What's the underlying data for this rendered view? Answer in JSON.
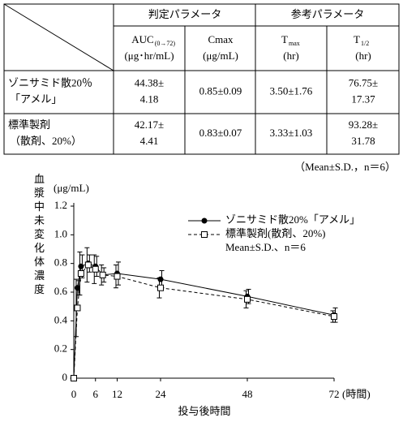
{
  "table": {
    "groups": [
      "判定パラメータ",
      "参考パラメータ"
    ],
    "columns": [
      {
        "name": "AUC",
        "sub": "(0→72)",
        "unit": "(μg･hr/mL)"
      },
      {
        "name": "Cmax",
        "sub": null,
        "unit": "(μg/mL)"
      },
      {
        "name": "T",
        "sub": "max",
        "unit": "(hr)"
      },
      {
        "name": "T",
        "sub": "1/2",
        "unit": "(hr)"
      }
    ],
    "rows": [
      {
        "label": [
          "ゾニサミド散20％",
          "「アメル」"
        ],
        "cells": [
          [
            "44.38±",
            "4.18"
          ],
          [
            "0.85±0.09"
          ],
          [
            "3.50±1.76"
          ],
          [
            "76.75±",
            "17.37"
          ]
        ]
      },
      {
        "label": [
          "標準製剤",
          "（散剤、20%）"
        ],
        "cells": [
          [
            "42.17±",
            "4.41"
          ],
          [
            "0.83±0.07"
          ],
          [
            "3.33±1.03"
          ],
          [
            "93.28±",
            "31.78"
          ]
        ]
      }
    ],
    "note": "（Mean±S.D.，n＝6）"
  },
  "chart_data": {
    "type": "line",
    "y_label": "(μg/mL)",
    "y_title": "血漿中未変化体濃度",
    "x_label": "投与後時間",
    "x_unit": "(時間)",
    "x": [
      0,
      1,
      2,
      4,
      6,
      8,
      12,
      24,
      48,
      72
    ],
    "series": [
      {
        "name": "ゾニサミド散20%「アメル」",
        "color": "#000",
        "values": [
          0,
          0.63,
          0.78,
          0.8,
          0.78,
          0.72,
          0.73,
          0.69,
          0.57,
          0.44
        ],
        "errors": [
          0,
          0.05,
          0.08,
          0.06,
          0.07,
          0.05,
          0.08,
          0.06,
          0.05,
          0.05
        ]
      },
      {
        "name": "標準製剤(散剤、20%)",
        "color": "#000",
        "values": [
          0,
          0.49,
          0.73,
          0.79,
          0.76,
          0.72,
          0.71,
          0.63,
          0.55,
          0.43
        ],
        "errors": [
          0,
          0.2,
          0.15,
          0.12,
          0.1,
          0.07,
          0.08,
          0.07,
          0.06,
          0.04
        ]
      }
    ],
    "note": "Mean±S.D.、n＝6",
    "xlim": [
      0,
      72
    ],
    "ylim": [
      0,
      1.2
    ],
    "xticks": [
      0,
      6,
      12,
      24,
      48,
      72
    ],
    "yticks": [
      0,
      0.2,
      0.4,
      0.6,
      0.8,
      {
        "value": 1,
        "label": "1.0"
      },
      1.2
    ]
  }
}
